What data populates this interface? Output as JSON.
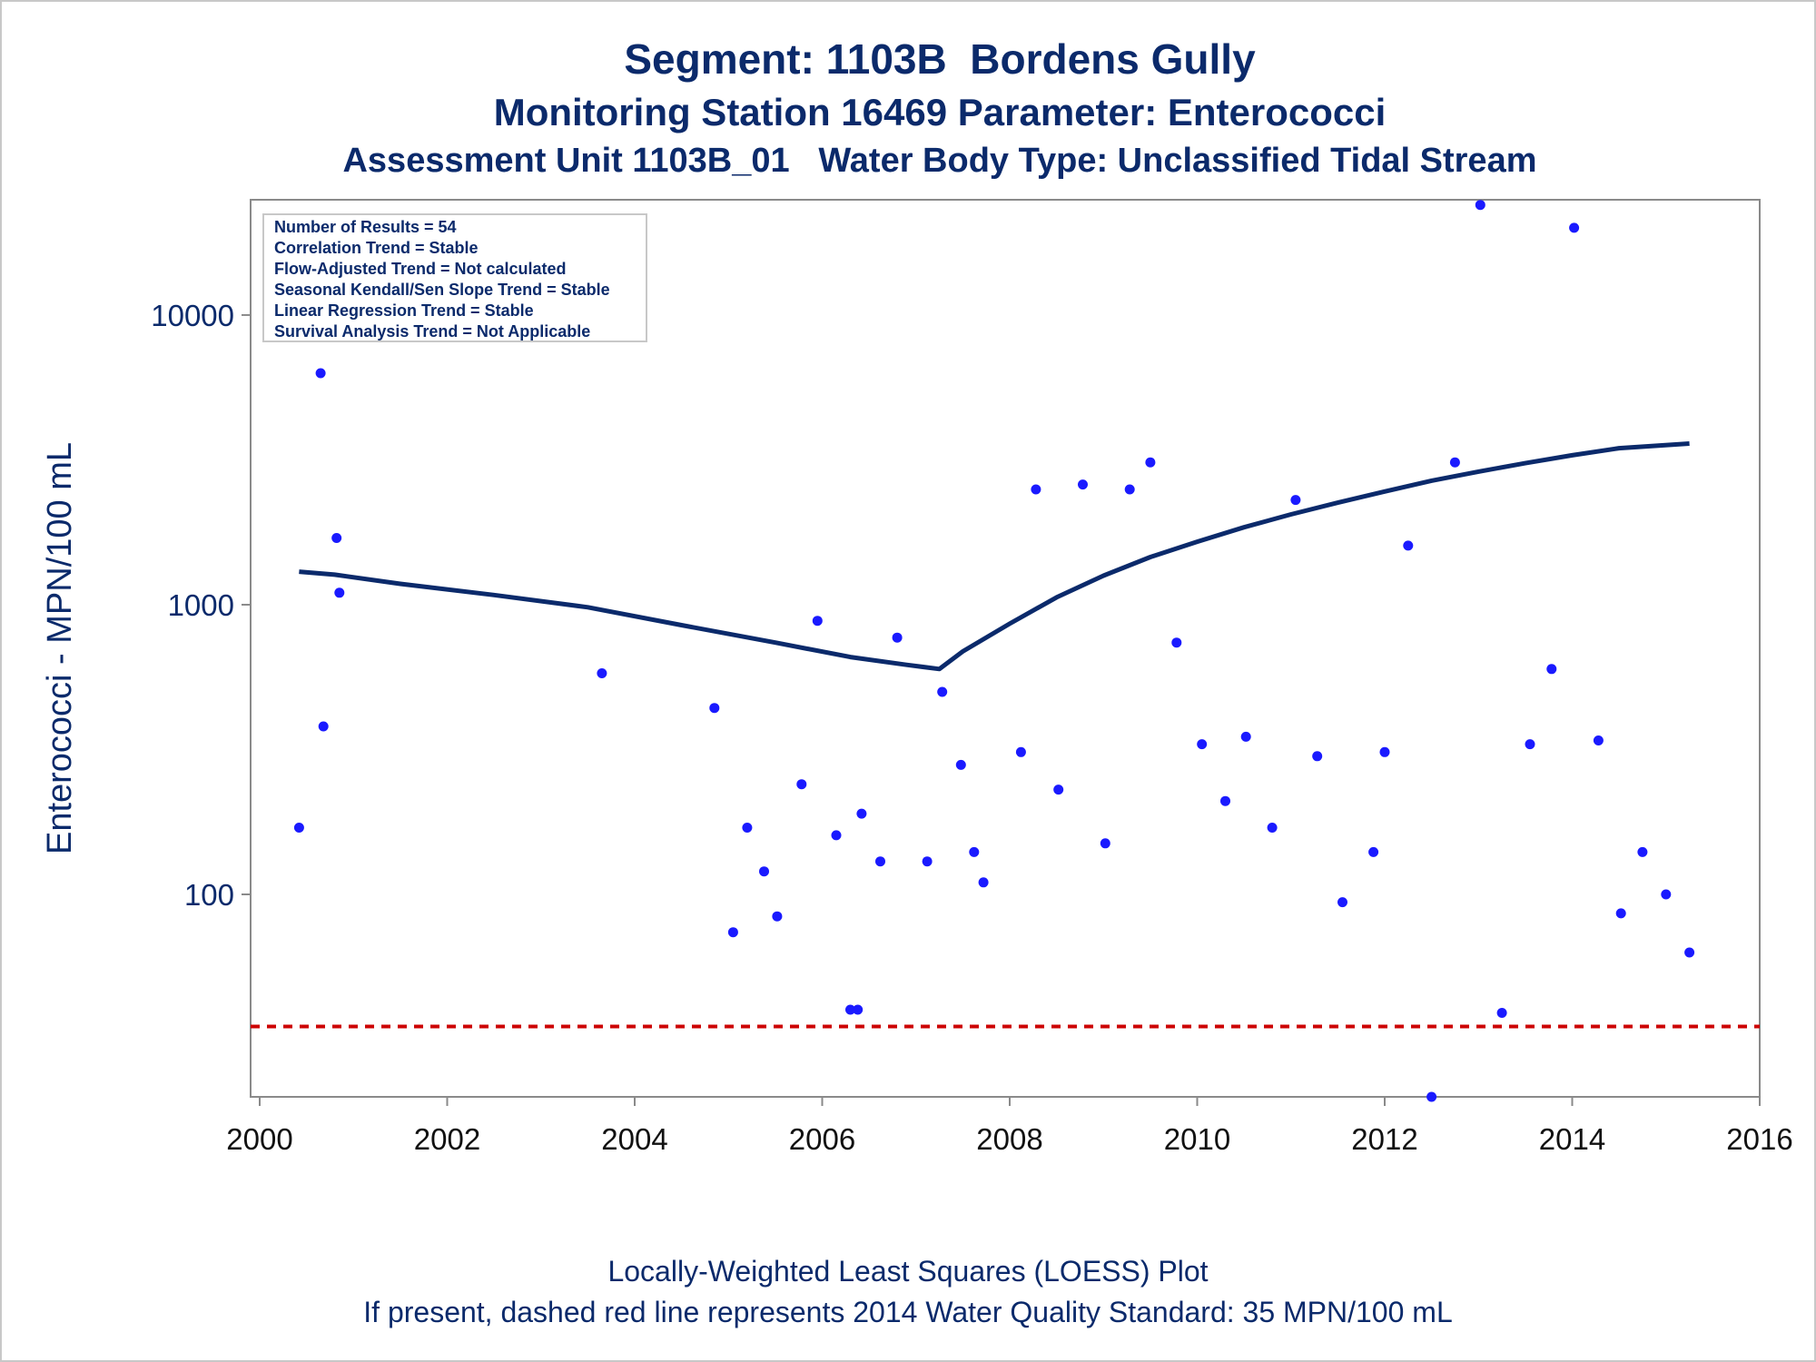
{
  "titles": {
    "line1": "Segment: 1103B  Bordens Gully",
    "line2": "Monitoring Station 16469 Parameter: Enterococci",
    "line3": "Assessment Unit 1103B_01   Water Body Type: Unclassified Tidal Stream"
  },
  "footnotes": {
    "line1": "Locally-Weighted Least Squares (LOESS) Plot",
    "line2": "If present, dashed red line represents 2014 Water Quality Standard: 35 MPN/100 mL"
  },
  "stats_box": [
    "Number of Results = 54",
    "Correlation Trend = Stable",
    "Flow-Adjusted Trend = Not calculated",
    "Seasonal Kendall/Sen Slope Trend = Stable",
    "Linear Regression Trend = Stable",
    "Survival Analysis Trend = Not Applicable"
  ],
  "colors": {
    "text": "#0b2a6b",
    "points": "#1a1aff",
    "loess": "#0b2a6b",
    "standard_line": "#cc0000",
    "axis": "#8a8a8a"
  },
  "chart_data": {
    "type": "scatter",
    "ylabel": "Enterococci - MPN/100 mL",
    "xlabel": "",
    "y_scale": "log",
    "xlim": [
      2000,
      2016
    ],
    "ylim": [
      20,
      25000
    ],
    "x_ticks": [
      2000,
      2002,
      2004,
      2006,
      2008,
      2010,
      2012,
      2014,
      2016
    ],
    "y_ticks": [
      100,
      1000,
      10000
    ],
    "grid": false,
    "standard_line": {
      "value": 35,
      "style": "dashed"
    },
    "points": [
      [
        2000.42,
        170
      ],
      [
        2000.65,
        6300
      ],
      [
        2000.68,
        380
      ],
      [
        2000.82,
        1700
      ],
      [
        2000.85,
        1100
      ],
      [
        2003.65,
        580
      ],
      [
        2004.85,
        440
      ],
      [
        2005.05,
        74
      ],
      [
        2005.2,
        170
      ],
      [
        2005.38,
        120
      ],
      [
        2005.52,
        84
      ],
      [
        2005.78,
        240
      ],
      [
        2005.95,
        880
      ],
      [
        2006.15,
        160
      ],
      [
        2006.3,
        40
      ],
      [
        2006.38,
        40
      ],
      [
        2006.42,
        190
      ],
      [
        2006.62,
        130
      ],
      [
        2006.8,
        770
      ],
      [
        2007.12,
        130
      ],
      [
        2007.28,
        500
      ],
      [
        2007.48,
        280
      ],
      [
        2007.62,
        140
      ],
      [
        2007.72,
        110
      ],
      [
        2008.12,
        310
      ],
      [
        2008.28,
        2500
      ],
      [
        2008.52,
        230
      ],
      [
        2008.78,
        2600
      ],
      [
        2009.02,
        150
      ],
      [
        2009.28,
        2500
      ],
      [
        2009.5,
        3100
      ],
      [
        2009.78,
        740
      ],
      [
        2010.05,
        330
      ],
      [
        2010.3,
        210
      ],
      [
        2010.52,
        350
      ],
      [
        2010.8,
        170
      ],
      [
        2011.05,
        2300
      ],
      [
        2011.28,
        300
      ],
      [
        2011.55,
        94
      ],
      [
        2011.88,
        140
      ],
      [
        2012.0,
        310
      ],
      [
        2012.25,
        1600
      ],
      [
        2012.5,
        20
      ],
      [
        2012.75,
        3100
      ],
      [
        2013.02,
        24000
      ],
      [
        2013.25,
        39
      ],
      [
        2013.55,
        330
      ],
      [
        2013.78,
        600
      ],
      [
        2014.02,
        20000
      ],
      [
        2014.28,
        340
      ],
      [
        2014.52,
        86
      ],
      [
        2014.75,
        140
      ],
      [
        2015.0,
        100
      ],
      [
        2015.25,
        63
      ]
    ],
    "loess": [
      [
        2000.42,
        1300
      ],
      [
        2000.8,
        1270
      ],
      [
        2001.5,
        1180
      ],
      [
        2002.5,
        1080
      ],
      [
        2003.5,
        980
      ],
      [
        2004.5,
        850
      ],
      [
        2005.5,
        740
      ],
      [
        2006.3,
        660
      ],
      [
        2006.9,
        620
      ],
      [
        2007.25,
        600
      ],
      [
        2007.5,
        690
      ],
      [
        2008.0,
        860
      ],
      [
        2008.5,
        1060
      ],
      [
        2009.0,
        1260
      ],
      [
        2009.5,
        1460
      ],
      [
        2010.0,
        1650
      ],
      [
        2010.5,
        1850
      ],
      [
        2011.0,
        2050
      ],
      [
        2011.5,
        2250
      ],
      [
        2012.0,
        2460
      ],
      [
        2012.5,
        2680
      ],
      [
        2013.0,
        2880
      ],
      [
        2013.5,
        3080
      ],
      [
        2014.0,
        3280
      ],
      [
        2014.5,
        3470
      ],
      [
        2015.25,
        3600
      ]
    ]
  }
}
